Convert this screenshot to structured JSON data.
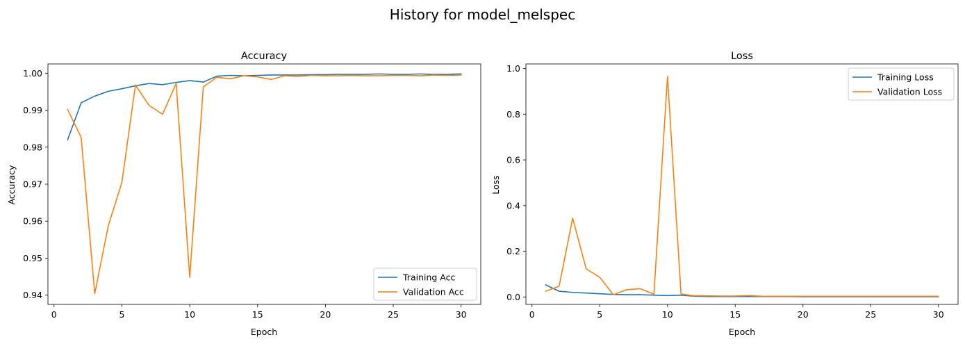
{
  "figure": {
    "title": "History for model_melspec"
  },
  "chart_data": [
    {
      "type": "line",
      "title": "Accuracy",
      "xlabel": "Epoch",
      "ylabel": "Accuracy",
      "xlim": [
        -0.45,
        31.45
      ],
      "ylim": [
        0.9375,
        1.0025
      ],
      "xticks": [
        0,
        5,
        10,
        15,
        20,
        25,
        30
      ],
      "yticks": [
        0.94,
        0.95,
        0.96,
        0.97,
        0.98,
        0.99,
        1.0
      ],
      "ytick_labels": [
        "0.94",
        "0.95",
        "0.96",
        "0.97",
        "0.98",
        "0.99",
        "1.00"
      ],
      "legend_position": "lower-right",
      "x": [
        1,
        2,
        3,
        4,
        5,
        6,
        7,
        8,
        9,
        10,
        11,
        12,
        13,
        14,
        15,
        16,
        17,
        18,
        19,
        20,
        21,
        22,
        23,
        24,
        25,
        26,
        27,
        28,
        29,
        30
      ],
      "series": [
        {
          "name": "Training Acc",
          "color": "#1f77b4",
          "values": [
            0.982,
            0.992,
            0.9938,
            0.9951,
            0.9958,
            0.9966,
            0.9972,
            0.9969,
            0.9975,
            0.998,
            0.9976,
            0.9992,
            0.9994,
            0.9993,
            0.9994,
            0.9995,
            0.9995,
            0.9995,
            0.9996,
            0.9996,
            0.9997,
            0.9997,
            0.9997,
            0.9998,
            0.9997,
            0.9997,
            0.9998,
            0.9997,
            0.9997,
            0.9998
          ]
        },
        {
          "name": "Validation Acc",
          "color": "#ff7f0e",
          "values": [
            0.9902,
            0.9826,
            0.9404,
            0.9588,
            0.9705,
            0.9968,
            0.9913,
            0.9889,
            0.9972,
            0.9448,
            0.9963,
            0.9989,
            0.9985,
            0.9993,
            0.999,
            0.9983,
            0.9993,
            0.9991,
            0.9994,
            0.9993,
            0.9993,
            0.9994,
            0.9993,
            0.9993,
            0.9994,
            0.9994,
            0.9993,
            0.9995,
            0.9994,
            0.9995
          ]
        }
      ]
    },
    {
      "type": "line",
      "title": "Loss",
      "xlabel": "Epoch",
      "ylabel": "Loss",
      "xlim": [
        -0.45,
        31.45
      ],
      "ylim": [
        -0.0325,
        1.02
      ],
      "xticks": [
        0,
        5,
        10,
        15,
        20,
        25,
        30
      ],
      "yticks": [
        0.0,
        0.2,
        0.4,
        0.6,
        0.8,
        1.0
      ],
      "ytick_labels": [
        "0.0",
        "0.2",
        "0.4",
        "0.6",
        "0.8",
        "1.0"
      ],
      "legend_position": "upper-right",
      "x": [
        1,
        2,
        3,
        4,
        5,
        6,
        7,
        8,
        9,
        10,
        11,
        12,
        13,
        14,
        15,
        16,
        17,
        18,
        19,
        20,
        21,
        22,
        23,
        24,
        25,
        26,
        27,
        28,
        29,
        30
      ],
      "series": [
        {
          "name": "Training Loss",
          "color": "#1f77b4",
          "values": [
            0.053,
            0.025,
            0.02,
            0.017,
            0.014,
            0.011,
            0.01,
            0.01,
            0.008,
            0.006,
            0.008,
            0.003,
            0.002,
            0.002,
            0.002,
            0.002,
            0.002,
            0.002,
            0.002,
            0.001,
            0.001,
            0.001,
            0.001,
            0.001,
            0.001,
            0.001,
            0.001,
            0.001,
            0.001,
            0.001
          ]
        },
        {
          "name": "Validation Loss",
          "color": "#ff7f0e",
          "values": [
            0.025,
            0.047,
            0.345,
            0.123,
            0.086,
            0.01,
            0.032,
            0.036,
            0.012,
            0.966,
            0.013,
            0.005,
            0.005,
            0.004,
            0.004,
            0.006,
            0.003,
            0.003,
            0.003,
            0.003,
            0.003,
            0.003,
            0.003,
            0.003,
            0.003,
            0.003,
            0.003,
            0.003,
            0.003,
            0.003
          ]
        }
      ]
    }
  ]
}
